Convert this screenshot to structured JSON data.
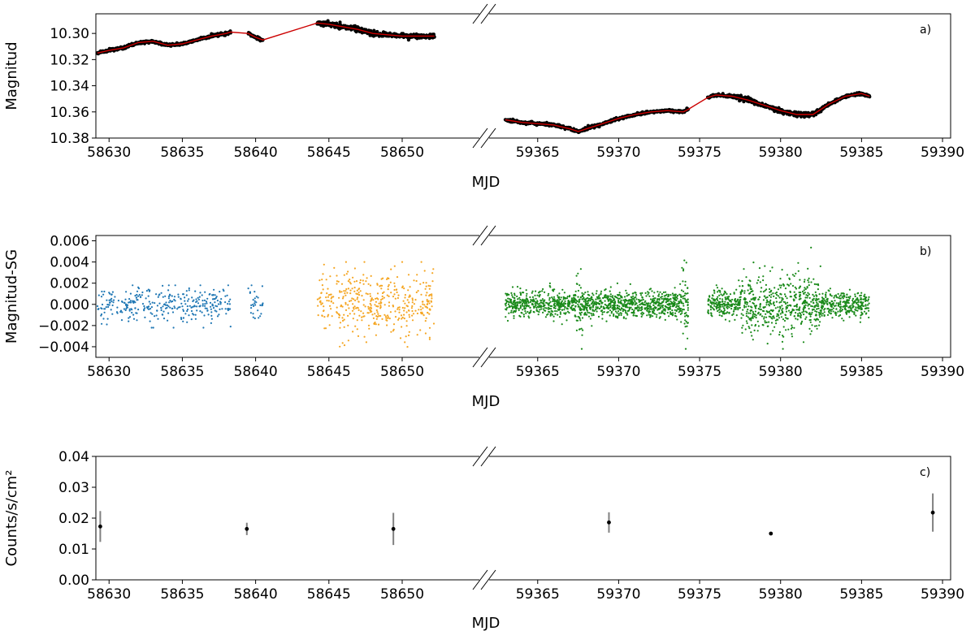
{
  "chart_data": [
    {
      "type": "scatter",
      "panel_label": "a)",
      "xlabel": "MJD",
      "ylabel": "Magnitud",
      "y_inverted": true,
      "ylim": [
        10.38,
        10.285
      ],
      "yticks": [
        10.3,
        10.32,
        10.34,
        10.36,
        10.38
      ],
      "ytick_labels": [
        "10.30",
        "10.32",
        "10.34",
        "10.36",
        "10.38"
      ],
      "x_segments": [
        {
          "xlim": [
            58629.1,
            58655.6
          ],
          "xticks": [
            58630,
            58635,
            58640,
            58645,
            58650
          ],
          "xtick_labels": [
            "58630",
            "58635",
            "58640",
            "58645",
            "58650"
          ]
        },
        {
          "xlim": [
            59361.7,
            59390.5
          ],
          "xticks": [
            59365,
            59370,
            59375,
            59380,
            59385,
            59390
          ],
          "xtick_labels": [
            "59365",
            "59370",
            "59375",
            "59380",
            "59385",
            "59390"
          ]
        }
      ],
      "broken_x_axis": true,
      "grid": false,
      "series": [
        {
          "color": "#000000",
          "marker": "dot",
          "x": [
            58629.2,
            58630.0,
            58631.0,
            58632.0,
            58633.0,
            58634.0,
            58635.0,
            58636.0,
            58637.0,
            58638.0,
            58638.3,
            58639.5,
            58640.0,
            58640.5,
            58644.2,
            58645.0,
            58646.0,
            58647.0,
            58648.0,
            58649.0,
            58650.0,
            58651.0,
            58652.2,
            59363.0,
            59364.0,
            59365.0,
            59366.0,
            59367.0,
            59367.5,
            59368.0,
            59369.0,
            59370.0,
            59371.0,
            59372.0,
            59373.0,
            59374.0,
            59374.3,
            59375.5,
            59376.0,
            59377.0,
            59378.0,
            59379.0,
            59380.0,
            59381.0,
            59382.0,
            59383.0,
            59384.0,
            59385.0,
            59385.5
          ],
          "y": [
            10.315,
            10.313,
            10.311,
            10.307,
            10.306,
            10.309,
            10.308,
            10.305,
            10.302,
            10.3,
            10.299,
            10.3,
            10.303,
            10.305,
            10.292,
            10.293,
            10.295,
            10.297,
            10.3,
            10.301,
            10.302,
            10.302,
            10.302,
            10.366,
            10.368,
            10.369,
            10.37,
            10.373,
            10.375,
            10.373,
            10.369,
            10.365,
            10.362,
            10.36,
            10.359,
            10.36,
            10.358,
            10.349,
            10.347,
            10.348,
            10.351,
            10.355,
            10.359,
            10.362,
            10.362,
            10.354,
            10.348,
            10.346,
            10.348
          ]
        },
        {
          "color": "#cc0000",
          "marker": "line",
          "x": [
            58629.2,
            58630.0,
            58631.0,
            58632.0,
            58633.0,
            58634.0,
            58635.0,
            58636.0,
            58637.0,
            58638.0,
            58638.3,
            58639.5,
            58640.0,
            58640.5,
            58644.2,
            58645.0,
            58646.0,
            58647.0,
            58648.0,
            58649.0,
            58650.0,
            58651.0,
            58652.2,
            59363.0,
            59364.0,
            59365.0,
            59366.0,
            59367.0,
            59367.5,
            59368.0,
            59369.0,
            59370.0,
            59371.0,
            59372.0,
            59373.0,
            59374.0,
            59374.3,
            59375.5,
            59376.0,
            59377.0,
            59378.0,
            59379.0,
            59380.0,
            59381.0,
            59382.0,
            59383.0,
            59384.0,
            59385.0,
            59385.5
          ],
          "y": [
            10.315,
            10.313,
            10.311,
            10.307,
            10.306,
            10.309,
            10.308,
            10.305,
            10.302,
            10.3,
            10.299,
            10.3,
            10.303,
            10.305,
            10.292,
            10.293,
            10.295,
            10.297,
            10.3,
            10.301,
            10.302,
            10.302,
            10.302,
            10.366,
            10.368,
            10.369,
            10.37,
            10.373,
            10.375,
            10.373,
            10.369,
            10.365,
            10.362,
            10.36,
            10.359,
            10.36,
            10.358,
            10.349,
            10.347,
            10.348,
            10.351,
            10.355,
            10.359,
            10.362,
            10.362,
            10.354,
            10.348,
            10.346,
            10.348
          ]
        }
      ]
    },
    {
      "type": "scatter",
      "panel_label": "b)",
      "xlabel": "MJD",
      "ylabel": "Magnitud-SG",
      "ylim": [
        -0.005,
        0.0065
      ],
      "yticks": [
        -0.004,
        -0.002,
        0.0,
        0.002,
        0.004,
        0.006
      ],
      "ytick_labels": [
        "−0.004",
        "−0.002",
        "0.000",
        "0.002",
        "0.004",
        "0.006"
      ],
      "x_segments": [
        {
          "xlim": [
            58629.1,
            58655.6
          ],
          "xticks": [
            58630,
            58635,
            58640,
            58645,
            58650
          ],
          "xtick_labels": [
            "58630",
            "58635",
            "58640",
            "58645",
            "58650"
          ]
        },
        {
          "xlim": [
            59361.7,
            59390.5
          ],
          "xticks": [
            59365,
            59370,
            59375,
            59380,
            59385,
            59390
          ],
          "xtick_labels": [
            "59365",
            "59370",
            "59375",
            "59380",
            "59385",
            "59390"
          ]
        }
      ],
      "broken_x_axis": true,
      "grid": false,
      "series": [
        {
          "color": "#1f77b4",
          "x_range": [
            58629.2,
            58640.5
          ],
          "gap": [
            58638.3,
            58639.5
          ],
          "n_points": 420,
          "y_center": 0.0,
          "y_spread": 0.0008,
          "y_min": -0.0022,
          "y_max": 0.0018
        },
        {
          "color": "#f5a623",
          "x_range": [
            58644.2,
            58652.2
          ],
          "gap": null,
          "n_points": 420,
          "y_center": 0.0,
          "y_spread": 0.0015,
          "y_min": -0.0048,
          "y_max": 0.004
        },
        {
          "color": "#1a8a1a",
          "x_range": [
            59363.0,
            59385.5
          ],
          "gap": [
            59374.3,
            59375.5
          ],
          "n_points": 2400,
          "y_center": 0.0,
          "y_spread": 0.0006,
          "y_min": -0.0042,
          "y_max": 0.006
        }
      ]
    },
    {
      "type": "scatter",
      "panel_label": "c)",
      "xlabel": "MJD",
      "ylabel": "Counts/s/cm²",
      "ylim": [
        0.0,
        0.04
      ],
      "yticks": [
        0.0,
        0.01,
        0.02,
        0.03,
        0.04
      ],
      "ytick_labels": [
        "0.00",
        "0.01",
        "0.02",
        "0.03",
        "0.04"
      ],
      "x_segments": [
        {
          "xlim": [
            58629.1,
            58655.6
          ],
          "xticks": [
            58630,
            58635,
            58640,
            58645,
            58650
          ],
          "xtick_labels": [
            "58630",
            "58635",
            "58640",
            "58645",
            "58650"
          ]
        },
        {
          "xlim": [
            59361.7,
            59390.5
          ],
          "xticks": [
            59365,
            59370,
            59375,
            59380,
            59385,
            59390
          ],
          "xtick_labels": [
            "59365",
            "59370",
            "59375",
            "59380",
            "59385",
            "59390"
          ]
        }
      ],
      "broken_x_axis": true,
      "grid": false,
      "series": [
        {
          "color": "#000000",
          "marker": "errorbar",
          "x": [
            58629.4,
            58639.4,
            58649.4,
            59369.4,
            59379.4,
            59389.4
          ],
          "y": [
            0.0173,
            0.0165,
            0.0165,
            0.0186,
            0.015,
            0.0218
          ],
          "yerr": [
            0.005,
            0.002,
            0.0052,
            0.0033,
            0.0,
            0.0062
          ]
        }
      ]
    }
  ]
}
